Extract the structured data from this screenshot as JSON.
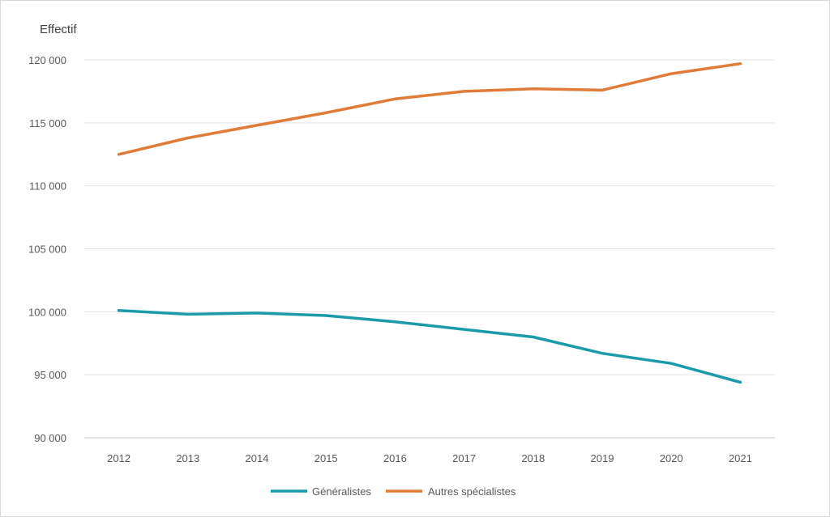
{
  "chart_data": {
    "type": "line",
    "ylabel": "Effectif",
    "xlabel": "",
    "title": "",
    "categories": [
      "2012",
      "2013",
      "2014",
      "2015",
      "2016",
      "2017",
      "2018",
      "2019",
      "2020",
      "2021"
    ],
    "yticks": [
      "90 000",
      "95 000",
      "100 000",
      "105 000",
      "110 000",
      "115 000",
      "120 000"
    ],
    "ylim": [
      90000,
      120000
    ],
    "grid": true,
    "legend_position": "bottom",
    "series": [
      {
        "name": "Généralistes",
        "color": "#1b9aaa",
        "values": [
          100100,
          99800,
          99900,
          99700,
          99200,
          98600,
          98000,
          96700,
          95900,
          94400
        ]
      },
      {
        "name": "Autres spécialistes",
        "color": "#e07b39",
        "values": [
          112500,
          113800,
          114800,
          115800,
          116900,
          117500,
          117700,
          117600,
          118900,
          119700
        ]
      }
    ]
  }
}
